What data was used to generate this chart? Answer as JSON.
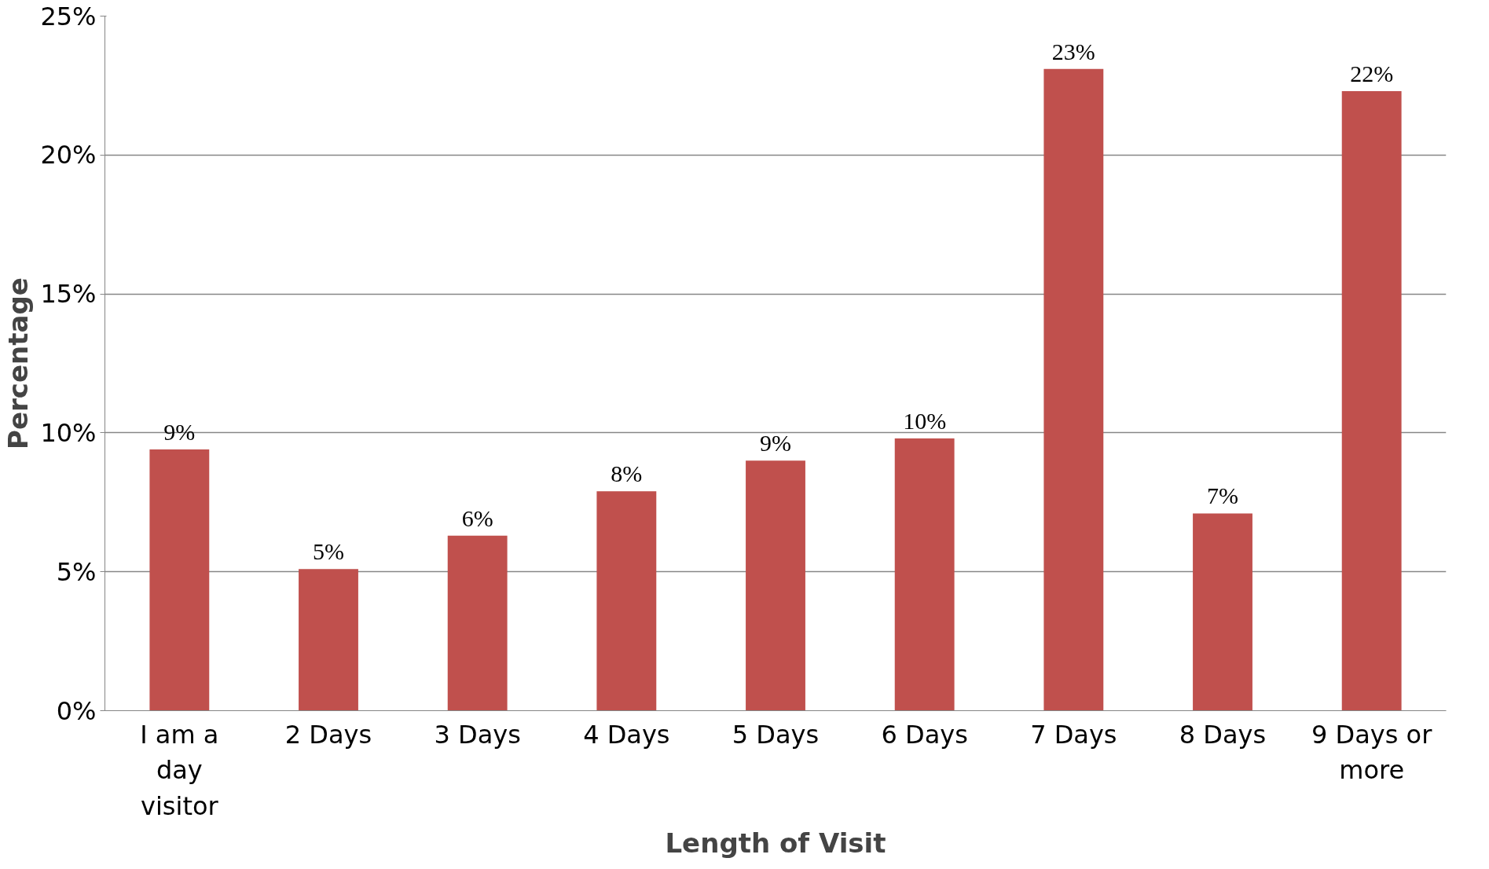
{
  "chart_data": {
    "type": "bar",
    "xlabel": "Length of Visit",
    "ylabel": "Percentage",
    "categories": [
      "I am a day visitor",
      "2 Days",
      "3 Days",
      "4 Days",
      "5 Days",
      "6 Days",
      "7 Days",
      "8 Days",
      "9 Days or more"
    ],
    "values": [
      9.4,
      5.1,
      6.3,
      7.9,
      9.0,
      9.8,
      23.1,
      7.1,
      22.3
    ],
    "value_labels": [
      "9%",
      "5%",
      "6%",
      "8%",
      "9%",
      "10%",
      "23%",
      "7%",
      "22%"
    ],
    "color": "#c0504d",
    "ylim": [
      0,
      25
    ],
    "yticks": [
      {
        "value": 0,
        "label": "0%"
      },
      {
        "value": 5,
        "label": "5%"
      },
      {
        "value": 10,
        "label": "10%"
      },
      {
        "value": 15,
        "label": "15%"
      },
      {
        "value": 20,
        "label": "20%"
      },
      {
        "value": 25,
        "label": "25%"
      }
    ],
    "grid": "y"
  }
}
